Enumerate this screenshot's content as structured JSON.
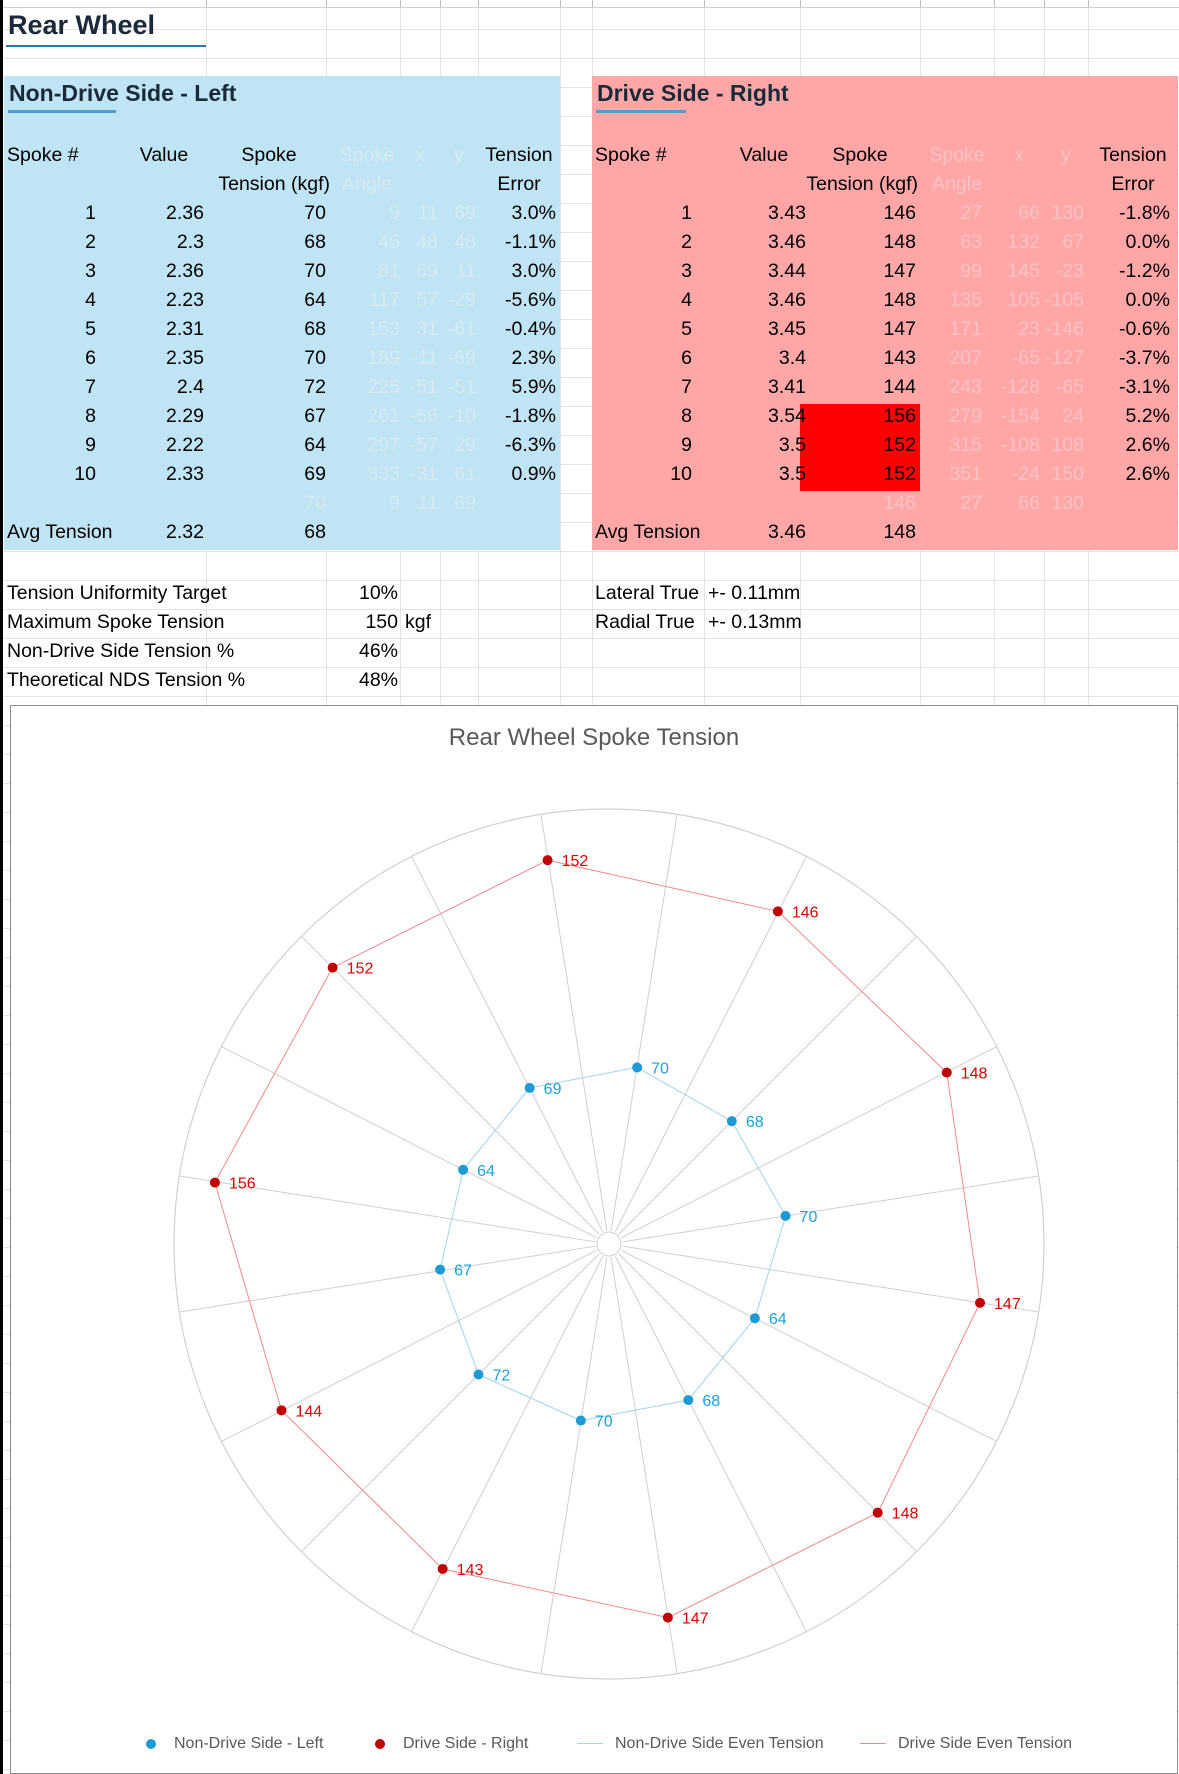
{
  "title": "Rear Wheel",
  "left": {
    "heading": "Non-Drive Side - Left",
    "headers": {
      "spoke_no": "Spoke #",
      "value": "Value",
      "spoke1": "Spoke",
      "spoke2": "Tension (kgf)",
      "angle1": "Spoke",
      "angle2": "Angle",
      "x": "x",
      "y": "y",
      "err1": "Tension",
      "err2": "Error"
    },
    "rows": [
      {
        "n": "1",
        "v": "2.36",
        "t": "70",
        "a": "9",
        "x": "11",
        "y": "69",
        "e": "3.0%"
      },
      {
        "n": "2",
        "v": "2.3",
        "t": "68",
        "a": "45",
        "x": "48",
        "y": "48",
        "e": "-1.1%"
      },
      {
        "n": "3",
        "v": "2.36",
        "t": "70",
        "a": "81",
        "x": "69",
        "y": "11",
        "e": "3.0%"
      },
      {
        "n": "4",
        "v": "2.23",
        "t": "64",
        "a": "117",
        "x": "57",
        "y": "-29",
        "e": "-5.6%"
      },
      {
        "n": "5",
        "v": "2.31",
        "t": "68",
        "a": "153",
        "x": "31",
        "y": "-61",
        "e": "-0.4%"
      },
      {
        "n": "6",
        "v": "2.35",
        "t": "70",
        "a": "189",
        "x": "-11",
        "y": "-69",
        "e": "2.3%"
      },
      {
        "n": "7",
        "v": "2.4",
        "t": "72",
        "a": "225",
        "x": "-51",
        "y": "-51",
        "e": "5.9%"
      },
      {
        "n": "8",
        "v": "2.29",
        "t": "67",
        "a": "261",
        "x": "-66",
        "y": "-10",
        "e": "-1.8%"
      },
      {
        "n": "9",
        "v": "2.22",
        "t": "64",
        "a": "297",
        "x": "-57",
        "y": "29",
        "e": "-6.3%"
      },
      {
        "n": "10",
        "v": "2.33",
        "t": "69",
        "a": "333",
        "x": "-31",
        "y": "61",
        "e": "0.9%"
      }
    ],
    "extra": {
      "t": "70",
      "a": "9",
      "x": "11",
      "y": "69"
    },
    "avg_label": "Avg Tension",
    "avg_value": "2.32",
    "avg_tension": "68"
  },
  "right": {
    "heading": "Drive Side - Right",
    "headers": {
      "spoke_no": "Spoke #",
      "value": "Value",
      "spoke1": "Spoke",
      "spoke2": "Tension (kgf)",
      "angle1": "Spoke",
      "angle2": "Angle",
      "x": "x",
      "y": "y",
      "err1": "Tension",
      "err2": "Error"
    },
    "rows": [
      {
        "n": "1",
        "v": "3.43",
        "t": "146",
        "a": "27",
        "x": "66",
        "y": "130",
        "e": "-1.8%"
      },
      {
        "n": "2",
        "v": "3.46",
        "t": "148",
        "a": "63",
        "x": "132",
        "y": "67",
        "e": "0.0%"
      },
      {
        "n": "3",
        "v": "3.44",
        "t": "147",
        "a": "99",
        "x": "145",
        "y": "-23",
        "e": "-1.2%"
      },
      {
        "n": "4",
        "v": "3.46",
        "t": "148",
        "a": "135",
        "x": "105",
        "y": "-105",
        "e": "0.0%"
      },
      {
        "n": "5",
        "v": "3.45",
        "t": "147",
        "a": "171",
        "x": "23",
        "y": "-146",
        "e": "-0.6%"
      },
      {
        "n": "6",
        "v": "3.4",
        "t": "143",
        "a": "207",
        "x": "-65",
        "y": "-127",
        "e": "-3.7%"
      },
      {
        "n": "7",
        "v": "3.41",
        "t": "144",
        "a": "243",
        "x": "-128",
        "y": "-65",
        "e": "-3.1%"
      },
      {
        "n": "8",
        "v": "3.54",
        "t": "156",
        "a": "279",
        "x": "-154",
        "y": "24",
        "e": "5.2%"
      },
      {
        "n": "9",
        "v": "3.5",
        "t": "152",
        "a": "315",
        "x": "-108",
        "y": "108",
        "e": "2.6%"
      },
      {
        "n": "10",
        "v": "3.5",
        "t": "152",
        "a": "351",
        "x": "-24",
        "y": "150",
        "e": "2.6%"
      }
    ],
    "extra": {
      "t": "146",
      "a": "27",
      "x": "66",
      "y": "130"
    },
    "avg_label": "Avg Tension",
    "avg_value": "3.46",
    "avg_tension": "148",
    "highlight_color": "#ff0000"
  },
  "info": {
    "uniformity_label": "Tension Uniformity Target",
    "uniformity_value": "10%",
    "max_label": "Maximum Spoke Tension",
    "max_value": "150",
    "max_unit": "kgf",
    "nds_label": "Non-Drive Side Tension %",
    "nds_value": "46%",
    "theo_label": "Theoretical NDS Tension %",
    "theo_value": "48%",
    "lateral_label": "Lateral True",
    "lateral_value": "+- 0.11mm",
    "radial_label": "Radial True",
    "radial_value": "+- 0.13mm"
  },
  "chart_data": {
    "type": "scatter",
    "title": "Rear Wheel Spoke Tension",
    "coordinate_system": "polar (x,y from spoke angle and tension)",
    "axis_range": [
      -170,
      170
    ],
    "series": [
      {
        "name": "Non-Drive Side - Left",
        "color": "#1f9ad6",
        "points": [
          {
            "x": 11,
            "y": 69,
            "label": "70"
          },
          {
            "x": 48,
            "y": 48,
            "label": "68"
          },
          {
            "x": 69,
            "y": 11,
            "label": "70"
          },
          {
            "x": 57,
            "y": -29,
            "label": "64"
          },
          {
            "x": 31,
            "y": -61,
            "label": "68"
          },
          {
            "x": -11,
            "y": -69,
            "label": "70"
          },
          {
            "x": -51,
            "y": -51,
            "label": "72"
          },
          {
            "x": -66,
            "y": -10,
            "label": "67"
          },
          {
            "x": -57,
            "y": 29,
            "label": "64"
          },
          {
            "x": -31,
            "y": 61,
            "label": "69"
          }
        ]
      },
      {
        "name": "Drive Side - Right",
        "color": "#c00000",
        "points": [
          {
            "x": 66,
            "y": 130,
            "label": "146"
          },
          {
            "x": 132,
            "y": 67,
            "label": "148"
          },
          {
            "x": 145,
            "y": -23,
            "label": "147"
          },
          {
            "x": 105,
            "y": -105,
            "label": "148"
          },
          {
            "x": 23,
            "y": -146,
            "label": "147"
          },
          {
            "x": -65,
            "y": -127,
            "label": "143"
          },
          {
            "x": -128,
            "y": -65,
            "label": "144"
          },
          {
            "x": -154,
            "y": 24,
            "label": "156"
          },
          {
            "x": -108,
            "y": 108,
            "label": "152"
          },
          {
            "x": -24,
            "y": 150,
            "label": "152"
          }
        ]
      },
      {
        "name": "Non-Drive Side Even Tension",
        "color": "#9fd3f0",
        "line": true
      },
      {
        "name": "Drive Side Even Tension",
        "color": "#f08b8b",
        "line": true
      }
    ]
  }
}
